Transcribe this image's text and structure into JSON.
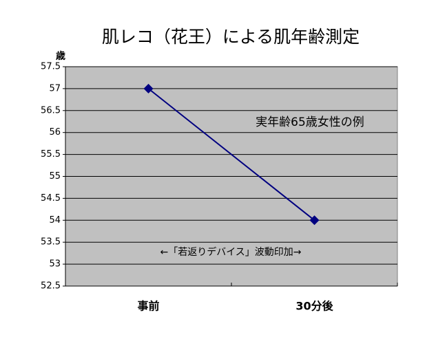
{
  "chart_data": {
    "type": "line",
    "title": "肌レコ（花王）による肌年齢測定",
    "y_label": "歳",
    "annotations": [
      "実年齢65歳女性の例",
      "←「若返りデバイス」波動印加→"
    ],
    "categories": [
      "事前",
      "30分後"
    ],
    "values": [
      57,
      54
    ],
    "color": "#000080",
    "ylim": [
      52.5,
      57.5
    ],
    "yticks": [
      52.5,
      53,
      53.5,
      54,
      54.5,
      55,
      55.5,
      56,
      56.5,
      57,
      57.5
    ],
    "grid": true,
    "plot_background": "#c0c0c0"
  }
}
